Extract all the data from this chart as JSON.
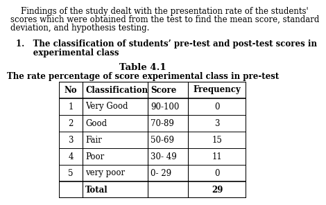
{
  "title1": "Table 4.1",
  "title2": "The rate percentage of score experimental class in pre-test",
  "header": [
    "No",
    "Classification",
    "Score",
    "Frequency"
  ],
  "rows": [
    [
      "1",
      "Very Good",
      "90-100",
      "0"
    ],
    [
      "2",
      "Good",
      "70-89",
      "3"
    ],
    [
      "3",
      "Fair",
      "50-69",
      "15"
    ],
    [
      "4",
      "Poor",
      "30- 49",
      "11"
    ],
    [
      "5",
      "very poor",
      "0- 29",
      "0"
    ],
    [
      "",
      "Total",
      "",
      "29"
    ]
  ],
  "text_line1": "    Findings of the study dealt with the presentation rate of the students'",
  "text_line2": "scores which were obtained from the test to find the mean score, standard",
  "text_line3": "deviation, and hypothesis testing.",
  "section_title_line1": "1.   The classification of students’ pre-test and post-test scores in",
  "section_title_line2": "      experimental class",
  "bg_color": "#ffffff",
  "text_color": "#000000",
  "body_fontsize": 8.5,
  "title1_fontsize": 9.5,
  "title2_fontsize": 8.5,
  "table_fontsize": 8.5
}
